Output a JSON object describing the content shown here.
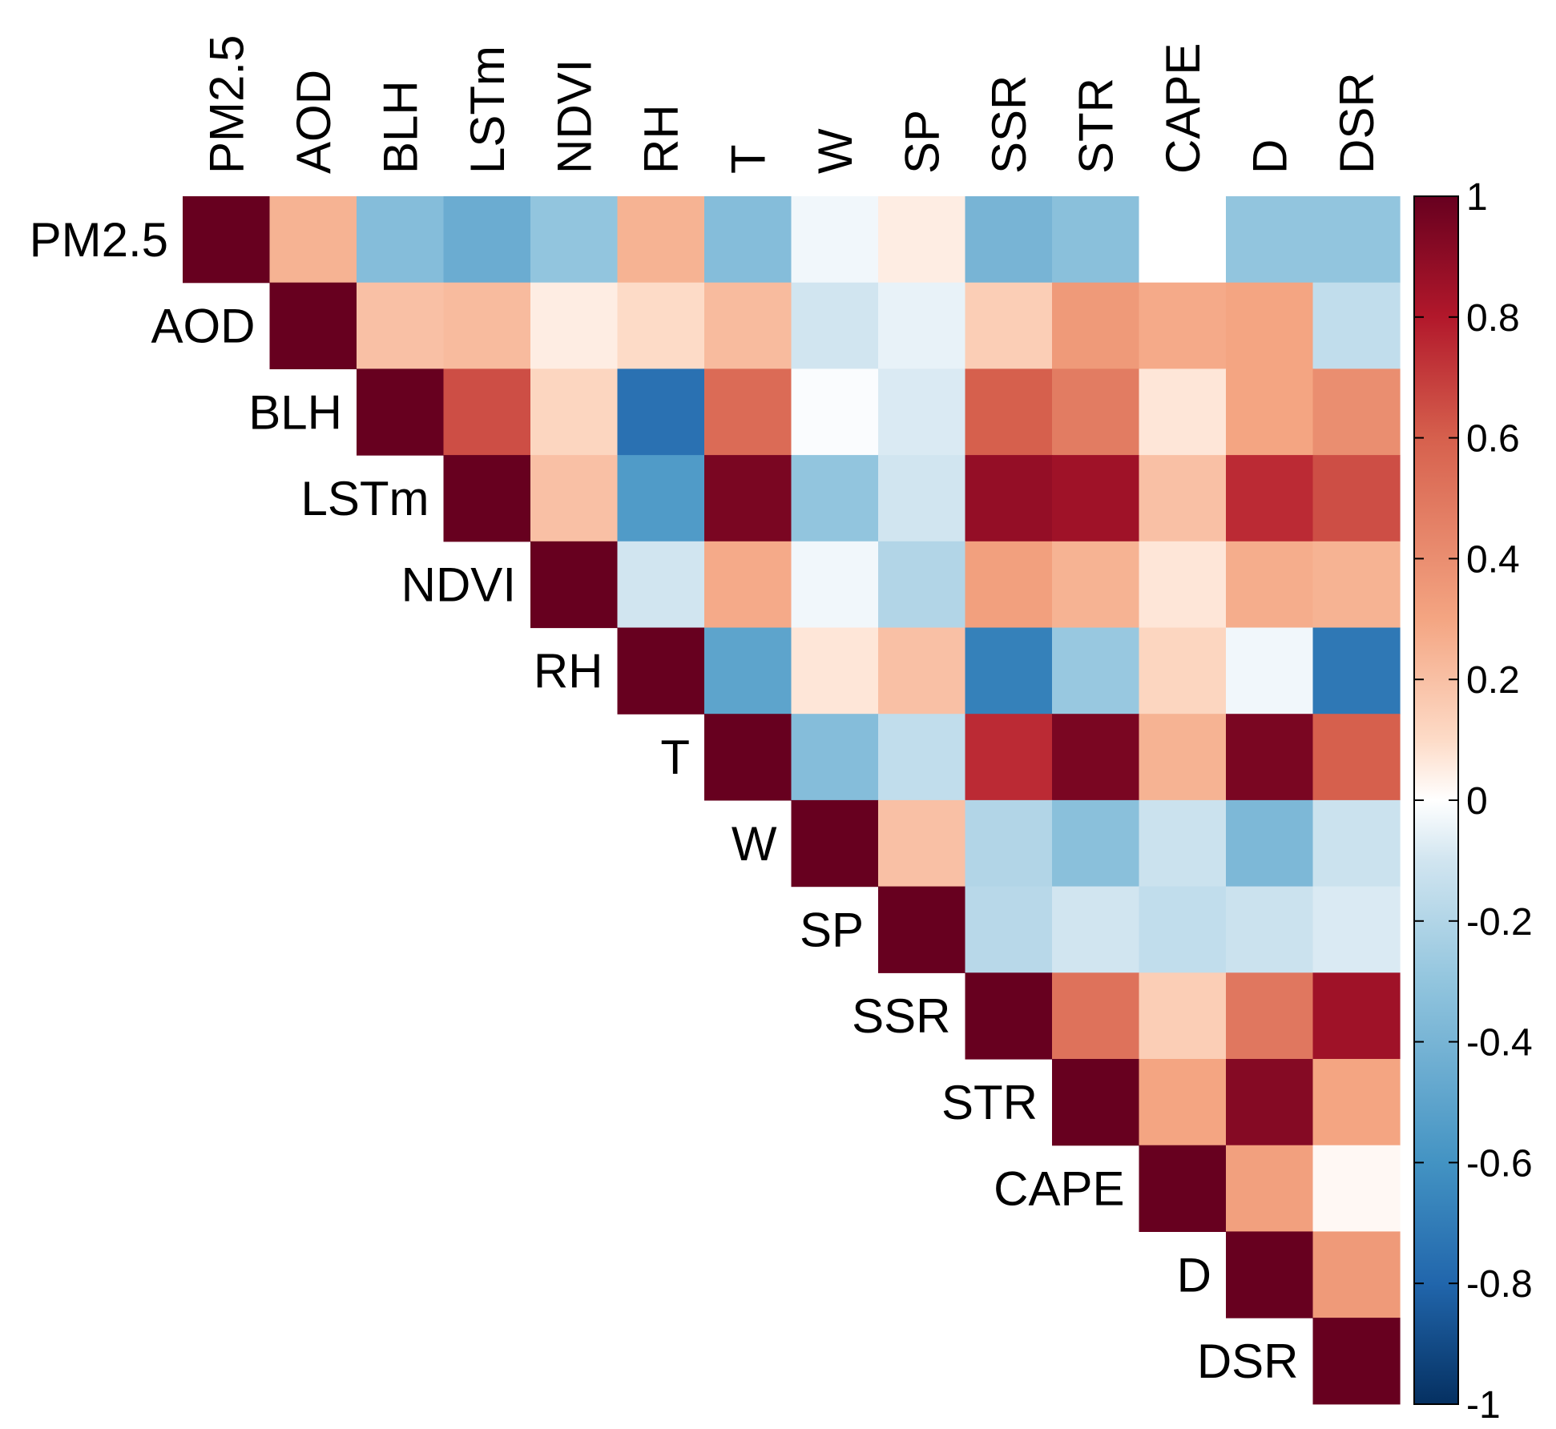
{
  "chart_data": {
    "type": "heatmap",
    "subtype": "correlation-matrix-upper-triangle",
    "title": "",
    "variables": [
      "PM2.5",
      "AOD",
      "BLH",
      "LSTm",
      "NDVI",
      "RH",
      "T",
      "W",
      "SP",
      "SSR",
      "STR",
      "CAPE",
      "D",
      "DSR"
    ],
    "matrix": [
      [
        1,
        0.25,
        -0.35,
        -0.45,
        -0.3,
        0.25,
        -0.35,
        -0.03,
        0.05,
        -0.4,
        -0.33,
        0.0,
        -0.3,
        -0.3
      ],
      [
        null,
        1,
        0.2,
        0.22,
        0.05,
        0.1,
        0.22,
        -0.1,
        -0.05,
        0.15,
        0.35,
        0.28,
        0.3,
        -0.15
      ],
      [
        null,
        null,
        1,
        0.65,
        0.12,
        -0.75,
        0.55,
        -0.01,
        -0.08,
        0.6,
        0.48,
        0.07,
        0.3,
        0.4
      ],
      [
        null,
        null,
        null,
        1,
        0.2,
        -0.55,
        0.95,
        -0.3,
        -0.1,
        0.88,
        0.85,
        0.2,
        0.75,
        0.65
      ],
      [
        null,
        null,
        null,
        null,
        1,
        -0.1,
        0.28,
        -0.03,
        -0.2,
        0.32,
        0.25,
        0.07,
        0.27,
        0.25
      ],
      [
        null,
        null,
        null,
        null,
        null,
        1,
        -0.5,
        0.07,
        0.2,
        -0.68,
        -0.28,
        0.12,
        -0.03,
        -0.72
      ],
      [
        null,
        null,
        null,
        null,
        null,
        null,
        1,
        -0.35,
        -0.15,
        0.75,
        0.95,
        0.25,
        0.95,
        0.6
      ],
      [
        null,
        null,
        null,
        null,
        null,
        null,
        null,
        1,
        0.2,
        -0.2,
        -0.33,
        -0.12,
        -0.38,
        -0.12
      ],
      [
        null,
        null,
        null,
        null,
        null,
        null,
        null,
        null,
        1,
        -0.18,
        -0.1,
        -0.15,
        -0.12,
        -0.08
      ],
      [
        null,
        null,
        null,
        null,
        null,
        null,
        null,
        null,
        null,
        1,
        0.52,
        0.15,
        0.5,
        0.85
      ],
      [
        null,
        null,
        null,
        null,
        null,
        null,
        null,
        null,
        null,
        null,
        1,
        0.3,
        0.92,
        0.3
      ],
      [
        null,
        null,
        null,
        null,
        null,
        null,
        null,
        null,
        null,
        null,
        null,
        1,
        0.32,
        0.02
      ],
      [
        null,
        null,
        null,
        null,
        null,
        null,
        null,
        null,
        null,
        null,
        null,
        null,
        1,
        0.35
      ],
      [
        null,
        null,
        null,
        null,
        null,
        null,
        null,
        null,
        null,
        null,
        null,
        null,
        null,
        1
      ]
    ],
    "colorbar": {
      "min": -1,
      "max": 1,
      "ticks": [
        "1",
        "0.8",
        "0.6",
        "0.4",
        "0.2",
        "0",
        "-0.2",
        "-0.4",
        "-0.6",
        "-0.8",
        "-1"
      ],
      "colors": {
        "neg_end": "#053061",
        "neg_mid": "#2166ac",
        "neg_light": "#4393c3",
        "neg_lighter": "#92c5de",
        "neg_lightest": "#d1e5f0",
        "zero": "#ffffff",
        "pos_lightest": "#fddbc7",
        "pos_lighter": "#f4a582",
        "pos_light": "#d6604d",
        "pos_mid": "#b2182b",
        "pos_end": "#67001f"
      }
    }
  }
}
